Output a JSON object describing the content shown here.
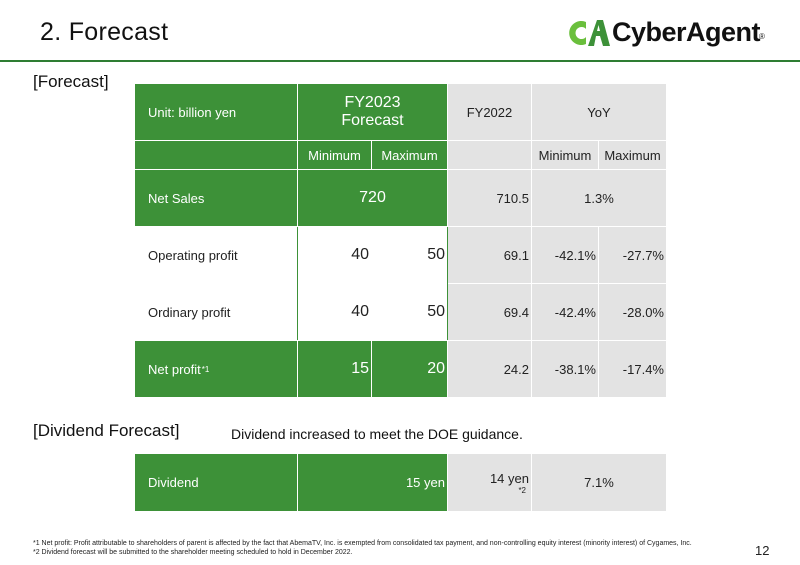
{
  "title": "2. Forecast",
  "logo": {
    "text": "CyberAgent",
    "mark": "CA",
    "reg": "®"
  },
  "forecast_label": "[Forecast]",
  "table": {
    "unit": "Unit: billion yen",
    "fy2023": "FY2023",
    "forecast": "Forecast",
    "fy2022": "FY2022",
    "yoy": "YoY",
    "min": "Minimum",
    "max": "Maximum",
    "yoy_min": "Minimum",
    "yoy_max": "Maximum",
    "net_sales": {
      "label": "Net Sales",
      "fy2023": "720",
      "fy2022": "710.5",
      "yoy": "1.3%"
    },
    "operating": {
      "label": "Operating profit",
      "min": "40",
      "max": "50",
      "fy2022": "69.1",
      "yoy_min": "-42.1%",
      "yoy_max": "-27.7%"
    },
    "ordinary": {
      "label": "Ordinary profit",
      "min": "40",
      "max": "50",
      "fy2022": "69.4",
      "yoy_min": "-42.4%",
      "yoy_max": "-28.0%"
    },
    "net_profit": {
      "label": "Net profit",
      "sup": "*1",
      "min": "15",
      "max": "20",
      "fy2022": "24.2",
      "yoy_min": "-38.1%",
      "yoy_max": "-17.4%"
    }
  },
  "dividend_label": "[Dividend Forecast]",
  "dividend_note": "Dividend increased to meet the DOE guidance.",
  "dividend": {
    "label": "Dividend",
    "fy2023": "15 yen",
    "fy2022": "14 yen",
    "fy2022_note": "*2",
    "yoy": "7.1%"
  },
  "footnotes": [
    "*1 Net profit: Profit attributable to shareholders of parent is affected by the fact that AbemaTV, Inc. is exempted from consolidated tax payment, and non-controlling equity interest (minority interest) of Cygames, Inc.",
    "*2 Dividend forecast will be submitted to the shareholder meeting scheduled to hold in December 2022."
  ],
  "page_number": "12",
  "colors": {
    "green": "#3d9138",
    "gray": "#e3e3e3",
    "logo_green": "#6abf3c"
  }
}
